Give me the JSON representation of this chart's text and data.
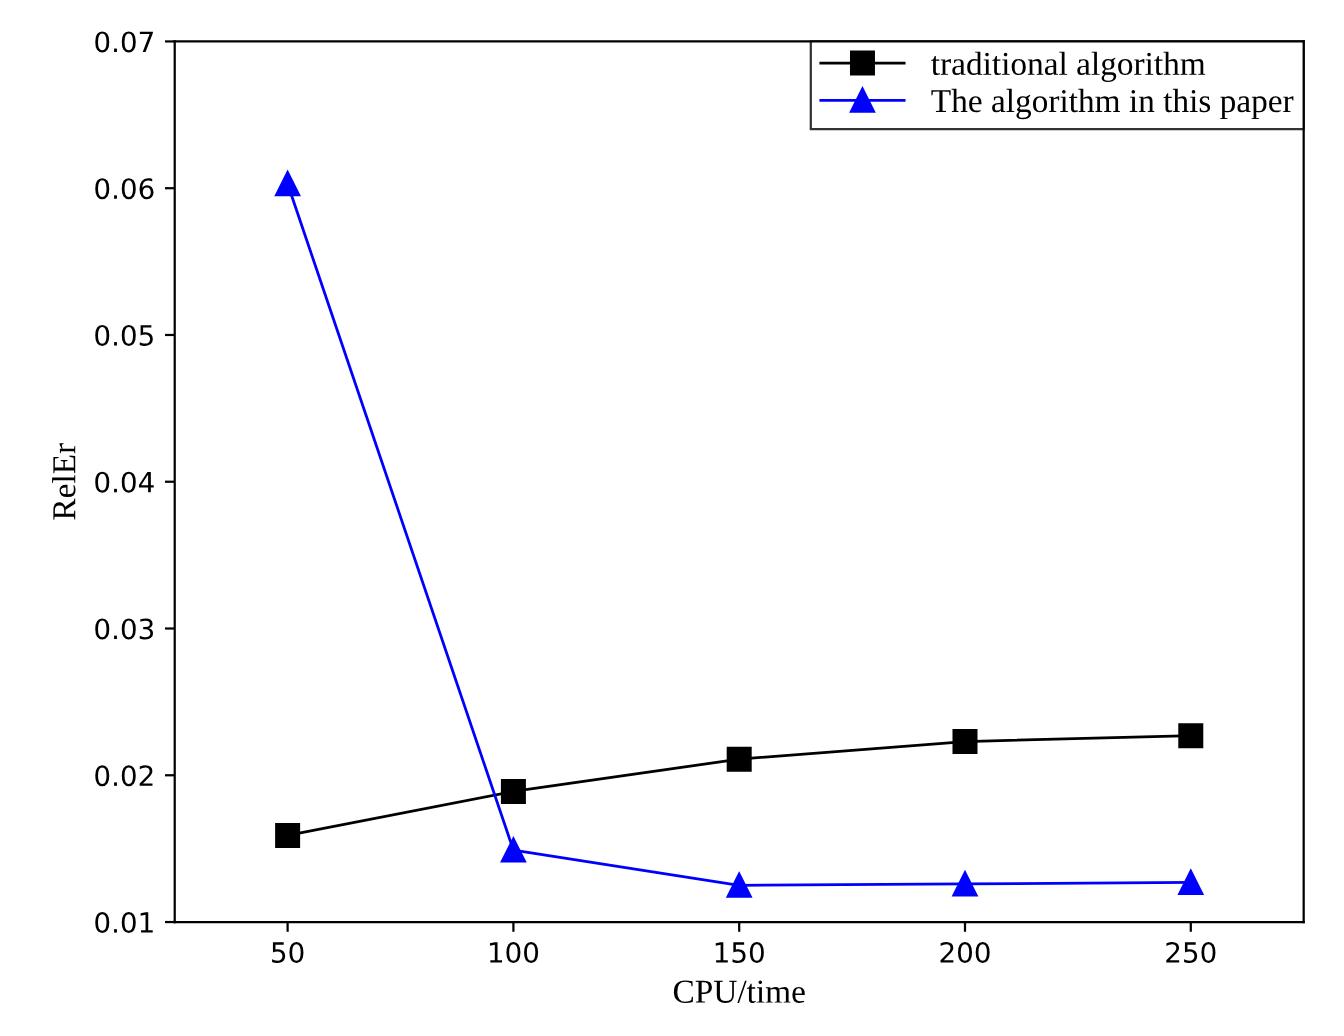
{
  "chart_data": {
    "type": "line",
    "xlabel": "CPU/time",
    "ylabel": "RelEr",
    "x": [
      50,
      100,
      150,
      200,
      250
    ],
    "series": [
      {
        "name": "traditional algorithm",
        "color": "#000000",
        "marker": "square",
        "values": [
          0.0159,
          0.0189,
          0.0211,
          0.0223,
          0.0227
        ]
      },
      {
        "name": "The algorithm in this paper",
        "color": "#0000ff",
        "marker": "triangle",
        "values": [
          0.0603,
          0.0149,
          0.0125,
          0.0126,
          0.0127
        ]
      }
    ],
    "xlim": [
      25,
      275
    ],
    "xticks": [
      50,
      100,
      150,
      200,
      250
    ],
    "ylim": [
      0.01,
      0.07
    ],
    "yticks": [
      0.01,
      0.02,
      0.03,
      0.04,
      0.05,
      0.06,
      0.07
    ],
    "grid": false,
    "legend": "top right",
    "line_style": "solid"
  }
}
